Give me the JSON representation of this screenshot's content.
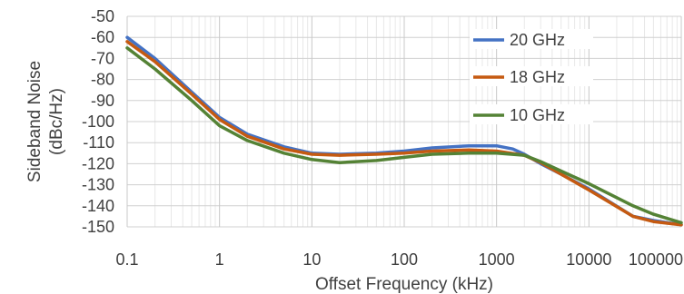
{
  "chart_data": {
    "type": "line",
    "title": "",
    "xlabel": "Offset Frequency (kHz)",
    "ylabel_lines": [
      "Sideband Noise",
      "(dBc/Hz)"
    ],
    "x_scale": "log",
    "xlim": [
      0.1,
      100000
    ],
    "ylim": [
      -150,
      -50
    ],
    "x_ticks": [
      0.1,
      1,
      10,
      100,
      1000,
      10000,
      100000
    ],
    "x_tick_labels": [
      "0.1",
      "1",
      "10",
      "100",
      "1000",
      "10000",
      "100000"
    ],
    "y_ticks": [
      -50,
      -60,
      -70,
      -80,
      -90,
      -100,
      -110,
      -120,
      -130,
      -140,
      -150
    ],
    "y_tick_labels": [
      "-50",
      "-60",
      "-70",
      "-80",
      "-90",
      "-100",
      "-110",
      "-120",
      "-130",
      "-140",
      "-150"
    ],
    "grid": true,
    "minor_grid": true,
    "legend_position": "right",
    "series": [
      {
        "name": "20 GHz",
        "color": "#4472C4",
        "points": [
          [
            0.1,
            -60
          ],
          [
            0.2,
            -70
          ],
          [
            0.5,
            -86
          ],
          [
            1,
            -98
          ],
          [
            2,
            -106
          ],
          [
            5,
            -112
          ],
          [
            10,
            -115
          ],
          [
            20,
            -115.5
          ],
          [
            50,
            -115
          ],
          [
            100,
            -114
          ],
          [
            200,
            -112.5
          ],
          [
            500,
            -111.5
          ],
          [
            1000,
            -111.5
          ],
          [
            1500,
            -113
          ],
          [
            2000,
            -115.5
          ],
          [
            3000,
            -120
          ],
          [
            5000,
            -125
          ],
          [
            10000,
            -132
          ],
          [
            30000,
            -145
          ],
          [
            50000,
            -147
          ],
          [
            100000,
            -149
          ]
        ]
      },
      {
        "name": "18 GHz",
        "color": "#C55A11",
        "points": [
          [
            0.1,
            -62
          ],
          [
            0.2,
            -71.5
          ],
          [
            0.5,
            -87
          ],
          [
            1,
            -99
          ],
          [
            2,
            -107
          ],
          [
            5,
            -113
          ],
          [
            10,
            -115.5
          ],
          [
            20,
            -116
          ],
          [
            50,
            -115.5
          ],
          [
            100,
            -115
          ],
          [
            200,
            -114
          ],
          [
            500,
            -113.5
          ],
          [
            1000,
            -114
          ],
          [
            2000,
            -116
          ],
          [
            3000,
            -119.5
          ],
          [
            5000,
            -125
          ],
          [
            10000,
            -132.5
          ],
          [
            30000,
            -145
          ],
          [
            50000,
            -147.5
          ],
          [
            100000,
            -149
          ]
        ]
      },
      {
        "name": "10 GHz",
        "color": "#548235",
        "points": [
          [
            0.1,
            -65
          ],
          [
            0.2,
            -75
          ],
          [
            0.5,
            -90
          ],
          [
            1,
            -102
          ],
          [
            2,
            -109
          ],
          [
            5,
            -115
          ],
          [
            10,
            -118
          ],
          [
            20,
            -119.5
          ],
          [
            50,
            -118.5
          ],
          [
            100,
            -117
          ],
          [
            200,
            -115.5
          ],
          [
            500,
            -115
          ],
          [
            1000,
            -115
          ],
          [
            2000,
            -116
          ],
          [
            3000,
            -119
          ],
          [
            5000,
            -123.5
          ],
          [
            10000,
            -129.5
          ],
          [
            30000,
            -140
          ],
          [
            50000,
            -144
          ],
          [
            100000,
            -148
          ]
        ]
      }
    ]
  }
}
